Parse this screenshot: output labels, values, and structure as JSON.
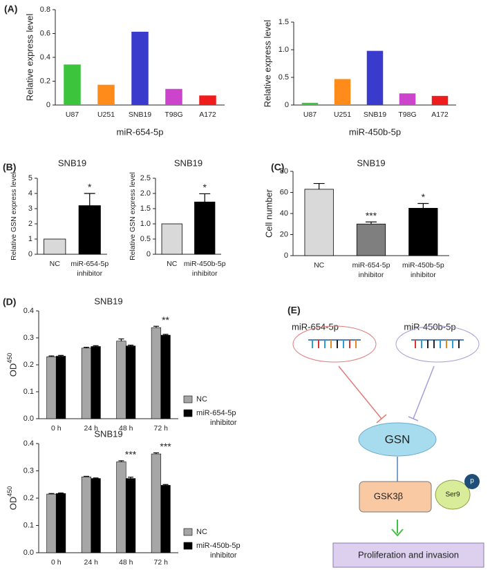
{
  "chart_data": [
    {
      "type": "bar",
      "panel_label": "(A)",
      "ylabel": "Relative express  level",
      "xlabel": "miR-654-5p",
      "categories": [
        "U87",
        "U251",
        "SNB19",
        "T98G",
        "A172"
      ],
      "values": [
        0.34,
        0.17,
        0.615,
        0.135,
        0.08
      ],
      "colors": [
        "#3cc43c",
        "#ff8c1a",
        "#3a3acc",
        "#cc44cc",
        "#ee1c1c"
      ],
      "ylim": [
        0,
        0.8
      ],
      "yticks": [
        0,
        0.2,
        0.4,
        0.6,
        0.8
      ]
    },
    {
      "type": "bar",
      "ylabel": "Relative express  level",
      "xlabel": "miR-450b-5p",
      "categories": [
        "U87",
        "U251",
        "SNB19",
        "T98G",
        "A172"
      ],
      "values": [
        0.04,
        0.47,
        0.98,
        0.21,
        0.165
      ],
      "colors": [
        "#3cc43c",
        "#ff8c1a",
        "#3a3acc",
        "#cc44cc",
        "#ee1c1c"
      ],
      "ylim": [
        0,
        1.5
      ],
      "yticks": [
        0,
        0.5,
        {
          "value": 1,
          "label": "1.0"
        },
        1.5
      ]
    },
    {
      "type": "bar",
      "panel_label": "(B)",
      "title": "SNB19",
      "ylabel": "Relative GSN express level",
      "categories": [
        "NC",
        "miR-654-5p inhibitor"
      ],
      "values": [
        1,
        3.2
      ],
      "errors": [
        null,
        0.8
      ],
      "significance": [
        null,
        "*"
      ],
      "colors": [
        "#d9d9d9",
        "#000000"
      ],
      "ylim": [
        0,
        5
      ],
      "yticks": [
        0,
        1,
        2,
        3,
        4,
        5
      ]
    },
    {
      "type": "bar",
      "title": "SNB19",
      "ylabel": "Relative GSN express level",
      "categories": [
        "NC",
        "miR-450b-5p inhibitor"
      ],
      "values": [
        1,
        1.72
      ],
      "errors": [
        null,
        0.27
      ],
      "significance": [
        null,
        "*"
      ],
      "colors": [
        "#d9d9d9",
        "#000000"
      ],
      "ylim": [
        0,
        2.5
      ],
      "yticks": [
        0,
        0.5,
        {
          "value": 1,
          "label": "1.0"
        },
        1.5,
        {
          "value": 2,
          "label": "2.0"
        },
        2.5
      ]
    },
    {
      "type": "bar",
      "panel_label": "(C)",
      "title": "SNB19",
      "ylabel": "Cell  number",
      "categories": [
        "NC",
        "miR-654-5p inhibitor",
        "miR-450b-5p inhibitor"
      ],
      "values": [
        63,
        30,
        45
      ],
      "errors": [
        5.5,
        2,
        4.5
      ],
      "significance": [
        null,
        "***",
        "*"
      ],
      "colors": [
        "#d9d9d9",
        "#7f7f7f",
        "#000000"
      ],
      "ylim": [
        0,
        80
      ],
      "yticks": [
        0,
        20,
        40,
        60,
        80
      ]
    },
    {
      "type": "bar",
      "panel_label": "(D)",
      "title": "SNB19",
      "ylabel": "OD",
      "ylabel_superscript": "450",
      "categories": [
        "0 h",
        "24 h",
        "48 h",
        "72 h"
      ],
      "series": [
        {
          "name": "NC",
          "color": "#a6a6a6",
          "values": [
            0.23,
            0.262,
            0.288,
            0.338
          ],
          "errors": [
            0.003,
            0.003,
            0.008,
            0.005
          ]
        },
        {
          "name": "miR-654-5p inhibitor",
          "color": "#000000",
          "values": [
            0.232,
            0.268,
            0.27,
            0.31
          ],
          "errors": [
            0.003,
            0.003,
            0.003,
            0.003
          ]
        }
      ],
      "significance": [
        null,
        null,
        null,
        "**"
      ],
      "ylim": [
        0,
        0.4
      ],
      "yticks": [
        {
          "value": 0,
          "label": "0.0"
        },
        0.1,
        0.2,
        0.3,
        0.4
      ],
      "legend": "right"
    },
    {
      "type": "bar",
      "title": "SNB19",
      "ylabel": "OD",
      "ylabel_superscript": "450",
      "categories": [
        "0 h",
        "24 h",
        "48 h",
        "72 h"
      ],
      "series": [
        {
          "name": "NC",
          "color": "#a6a6a6",
          "values": [
            0.215,
            0.278,
            0.333,
            0.362
          ],
          "errors": [
            0.002,
            0.002,
            0.004,
            0.004
          ]
        },
        {
          "name": "miR-450b-5p inhibitor",
          "color": "#000000",
          "values": [
            0.217,
            0.272,
            0.272,
            0.247
          ],
          "errors": [
            0.002,
            0.002,
            0.005,
            0.003
          ]
        }
      ],
      "significance": [
        null,
        null,
        "***",
        "***"
      ],
      "ylim": [
        0,
        0.4
      ],
      "yticks": [
        {
          "value": 0,
          "label": "0.0"
        },
        0.1,
        0.2,
        0.3,
        0.4
      ],
      "legend": "right"
    }
  ],
  "diagram": {
    "panel_label": "(E)",
    "mirna_1": "miR-654-5p",
    "mirna_2": "miR-450b-5p",
    "target": "GSN",
    "kinase": "GSK3β",
    "site": "Ser9",
    "phospho": "p",
    "outcome": "Proliferation and invasion"
  }
}
